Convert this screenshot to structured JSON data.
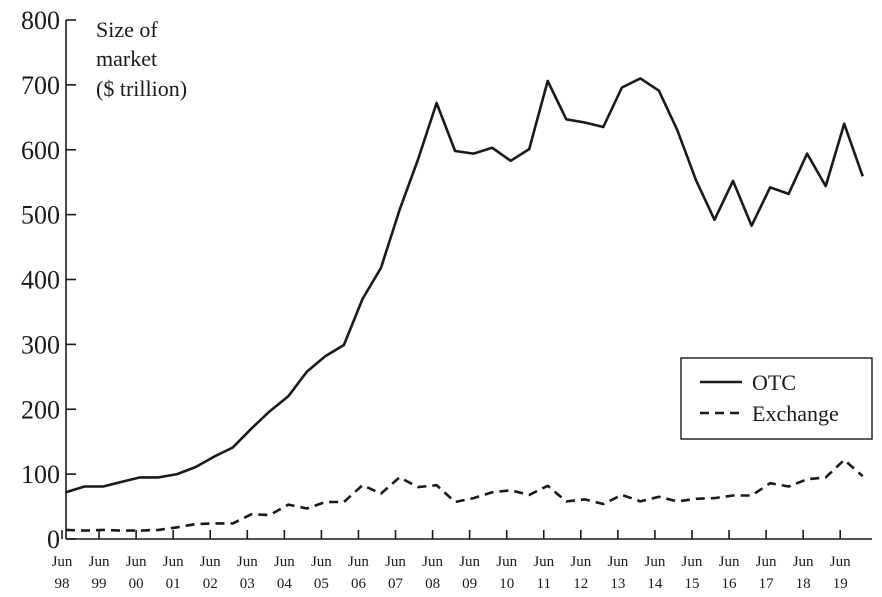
{
  "chart_data": {
    "type": "line",
    "title": "",
    "ylabel_lines": [
      "Size of",
      "market",
      "($ trillion)"
    ],
    "xlabel": "",
    "ylim": [
      0,
      800
    ],
    "yticks": [
      0,
      100,
      200,
      300,
      400,
      500,
      600,
      700,
      800
    ],
    "grid": false,
    "legend_position": "bottom-right",
    "x_tick_labels": [
      {
        "top": "Jun",
        "bottom": "98",
        "x": 1998.5
      },
      {
        "top": "Jun",
        "bottom": "99",
        "x": 1999.5
      },
      {
        "top": "Jun",
        "bottom": "00",
        "x": 2000.5
      },
      {
        "top": "Jun",
        "bottom": "01",
        "x": 2001.5
      },
      {
        "top": "Jun",
        "bottom": "02",
        "x": 2002.5
      },
      {
        "top": "Jun",
        "bottom": "03",
        "x": 2003.5
      },
      {
        "top": "Jun",
        "bottom": "04",
        "x": 2004.5
      },
      {
        "top": "Jun",
        "bottom": "05",
        "x": 2005.5
      },
      {
        "top": "Jun",
        "bottom": "06",
        "x": 2006.5
      },
      {
        "top": "Jun",
        "bottom": "07",
        "x": 2007.5
      },
      {
        "top": "Jun",
        "bottom": "08",
        "x": 2008.5
      },
      {
        "top": "Jun",
        "bottom": "09",
        "x": 2009.5
      },
      {
        "top": "Jun",
        "bottom": "10",
        "x": 2010.5
      },
      {
        "top": "Jun",
        "bottom": "11",
        "x": 2011.5
      },
      {
        "top": "Jun",
        "bottom": "12",
        "x": 2012.5
      },
      {
        "top": "Jun",
        "bottom": "13",
        "x": 2013.5
      },
      {
        "top": "Jun",
        "bottom": "14",
        "x": 2014.5
      },
      {
        "top": "Jun",
        "bottom": "15",
        "x": 2015.5
      },
      {
        "top": "Jun",
        "bottom": "16",
        "x": 2016.5
      },
      {
        "top": "Jun",
        "bottom": "17",
        "x": 2017.5
      },
      {
        "top": "Jun",
        "bottom": "18",
        "x": 2018.5
      },
      {
        "top": "Jun",
        "bottom": "19",
        "x": 2019.5
      }
    ],
    "xlim": [
      1998.5,
      2020.25
    ],
    "series": [
      {
        "name": "OTC",
        "style": "solid",
        "x": [
          1998.5,
          1999.0,
          1999.5,
          2000.0,
          2000.5,
          2001.0,
          2001.5,
          2002.0,
          2002.5,
          2003.0,
          2003.5,
          2004.0,
          2004.5,
          2005.0,
          2005.5,
          2006.0,
          2006.5,
          2007.0,
          2007.5,
          2008.0,
          2008.5,
          2009.0,
          2009.5,
          2010.0,
          2010.5,
          2011.0,
          2011.5,
          2012.0,
          2012.5,
          2013.0,
          2013.5,
          2014.0,
          2014.5,
          2015.0,
          2015.5,
          2016.0,
          2016.5,
          2017.0,
          2017.5,
          2018.0,
          2018.5,
          2019.0,
          2019.5,
          2020.0
        ],
        "values": [
          72,
          81,
          81,
          88,
          95,
          95,
          100,
          111,
          127,
          141,
          170,
          197,
          220,
          258,
          282,
          299,
          370,
          418,
          507,
          585,
          672,
          598,
          594,
          603,
          583,
          601,
          706,
          647,
          642,
          635,
          696,
          710,
          691,
          630,
          553,
          492,
          552,
          483,
          542,
          532,
          594,
          544,
          640,
          559
        ]
      },
      {
        "name": "Exchange",
        "style": "dashed",
        "x": [
          1998.5,
          1999.0,
          1999.5,
          2000.0,
          2000.5,
          2001.0,
          2001.5,
          2002.0,
          2002.5,
          2003.0,
          2003.5,
          2004.0,
          2004.5,
          2005.0,
          2005.5,
          2006.0,
          2006.5,
          2007.0,
          2007.5,
          2008.0,
          2008.5,
          2009.0,
          2009.5,
          2010.0,
          2010.5,
          2011.0,
          2011.5,
          2012.0,
          2012.5,
          2013.0,
          2013.5,
          2014.0,
          2014.5,
          2015.0,
          2015.5,
          2016.0,
          2016.5,
          2017.0,
          2017.5,
          2018.0,
          2018.5,
          2019.0,
          2019.5,
          2020.0
        ],
        "values": [
          14,
          13,
          14,
          13,
          13,
          14,
          18,
          23,
          24,
          24,
          38,
          37,
          53,
          47,
          57,
          57,
          83,
          70,
          95,
          80,
          83,
          57,
          63,
          72,
          75,
          68,
          82,
          58,
          61,
          54,
          68,
          58,
          65,
          58,
          62,
          63,
          67,
          67,
          86,
          81,
          92,
          95,
          122,
          97
        ]
      }
    ]
  }
}
